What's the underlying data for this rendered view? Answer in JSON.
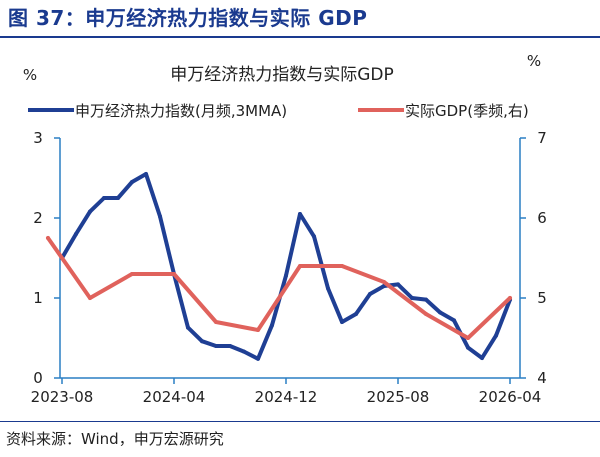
{
  "figure_title": "图 37：申万经济热力指数与实际 GDP",
  "source_note": "资料来源：Wind，申万宏源研究",
  "chart_data": {
    "type": "line",
    "title": "申万经济热力指数与实际GDP",
    "left_unit": "%",
    "right_unit": "%",
    "legend_position": "top",
    "grid": false,
    "x_tick_labels": [
      "2023-08",
      "2024-04",
      "2024-12",
      "2025-08",
      "2026-04"
    ],
    "y_left": {
      "ticks": [
        0,
        1,
        2,
        3
      ],
      "range": [
        0,
        3
      ]
    },
    "y_right": {
      "ticks": [
        4,
        5,
        6,
        7
      ],
      "range": [
        4,
        7
      ]
    },
    "series": [
      {
        "name": "申万经济热力指数(月频,3MMA)",
        "axis": "left",
        "color": "#1f3f94",
        "x": [
          "2023-08",
          "2023-09",
          "2023-10",
          "2023-11",
          "2023-12",
          "2024-01",
          "2024-02",
          "2024-03",
          "2024-04",
          "2024-05",
          "2024-06",
          "2024-07",
          "2024-08",
          "2024-09",
          "2024-10",
          "2024-11",
          "2024-12",
          "2025-01",
          "2025-02",
          "2025-03",
          "2025-04",
          "2025-05",
          "2025-06",
          "2025-07",
          "2025-08",
          "2025-09",
          "2025-10",
          "2025-11",
          "2025-12",
          "2026-01",
          "2026-02",
          "2026-03",
          "2026-04"
        ],
        "values": [
          1.5,
          1.8,
          2.08,
          2.25,
          2.25,
          2.45,
          2.55,
          2.02,
          1.3,
          0.63,
          0.46,
          0.4,
          0.4,
          0.33,
          0.24,
          0.66,
          1.28,
          2.05,
          1.77,
          1.12,
          0.7,
          0.8,
          1.05,
          1.15,
          1.17,
          1.0,
          0.98,
          0.82,
          0.72,
          0.38,
          0.25,
          0.53,
          0.98
        ]
      },
      {
        "name": "实际GDP(季频,右)",
        "axis": "right",
        "color": "#e0625c",
        "x": [
          "2023-07",
          "2023-10",
          "2024-01",
          "2024-04",
          "2024-07",
          "2024-10",
          "2025-01",
          "2025-04",
          "2025-07",
          "2025-10",
          "2026-01",
          "2026-04"
        ],
        "values": [
          5.75,
          5.0,
          5.3,
          5.3,
          4.7,
          4.6,
          5.4,
          5.4,
          5.2,
          4.8,
          4.5,
          5.0
        ]
      }
    ]
  }
}
